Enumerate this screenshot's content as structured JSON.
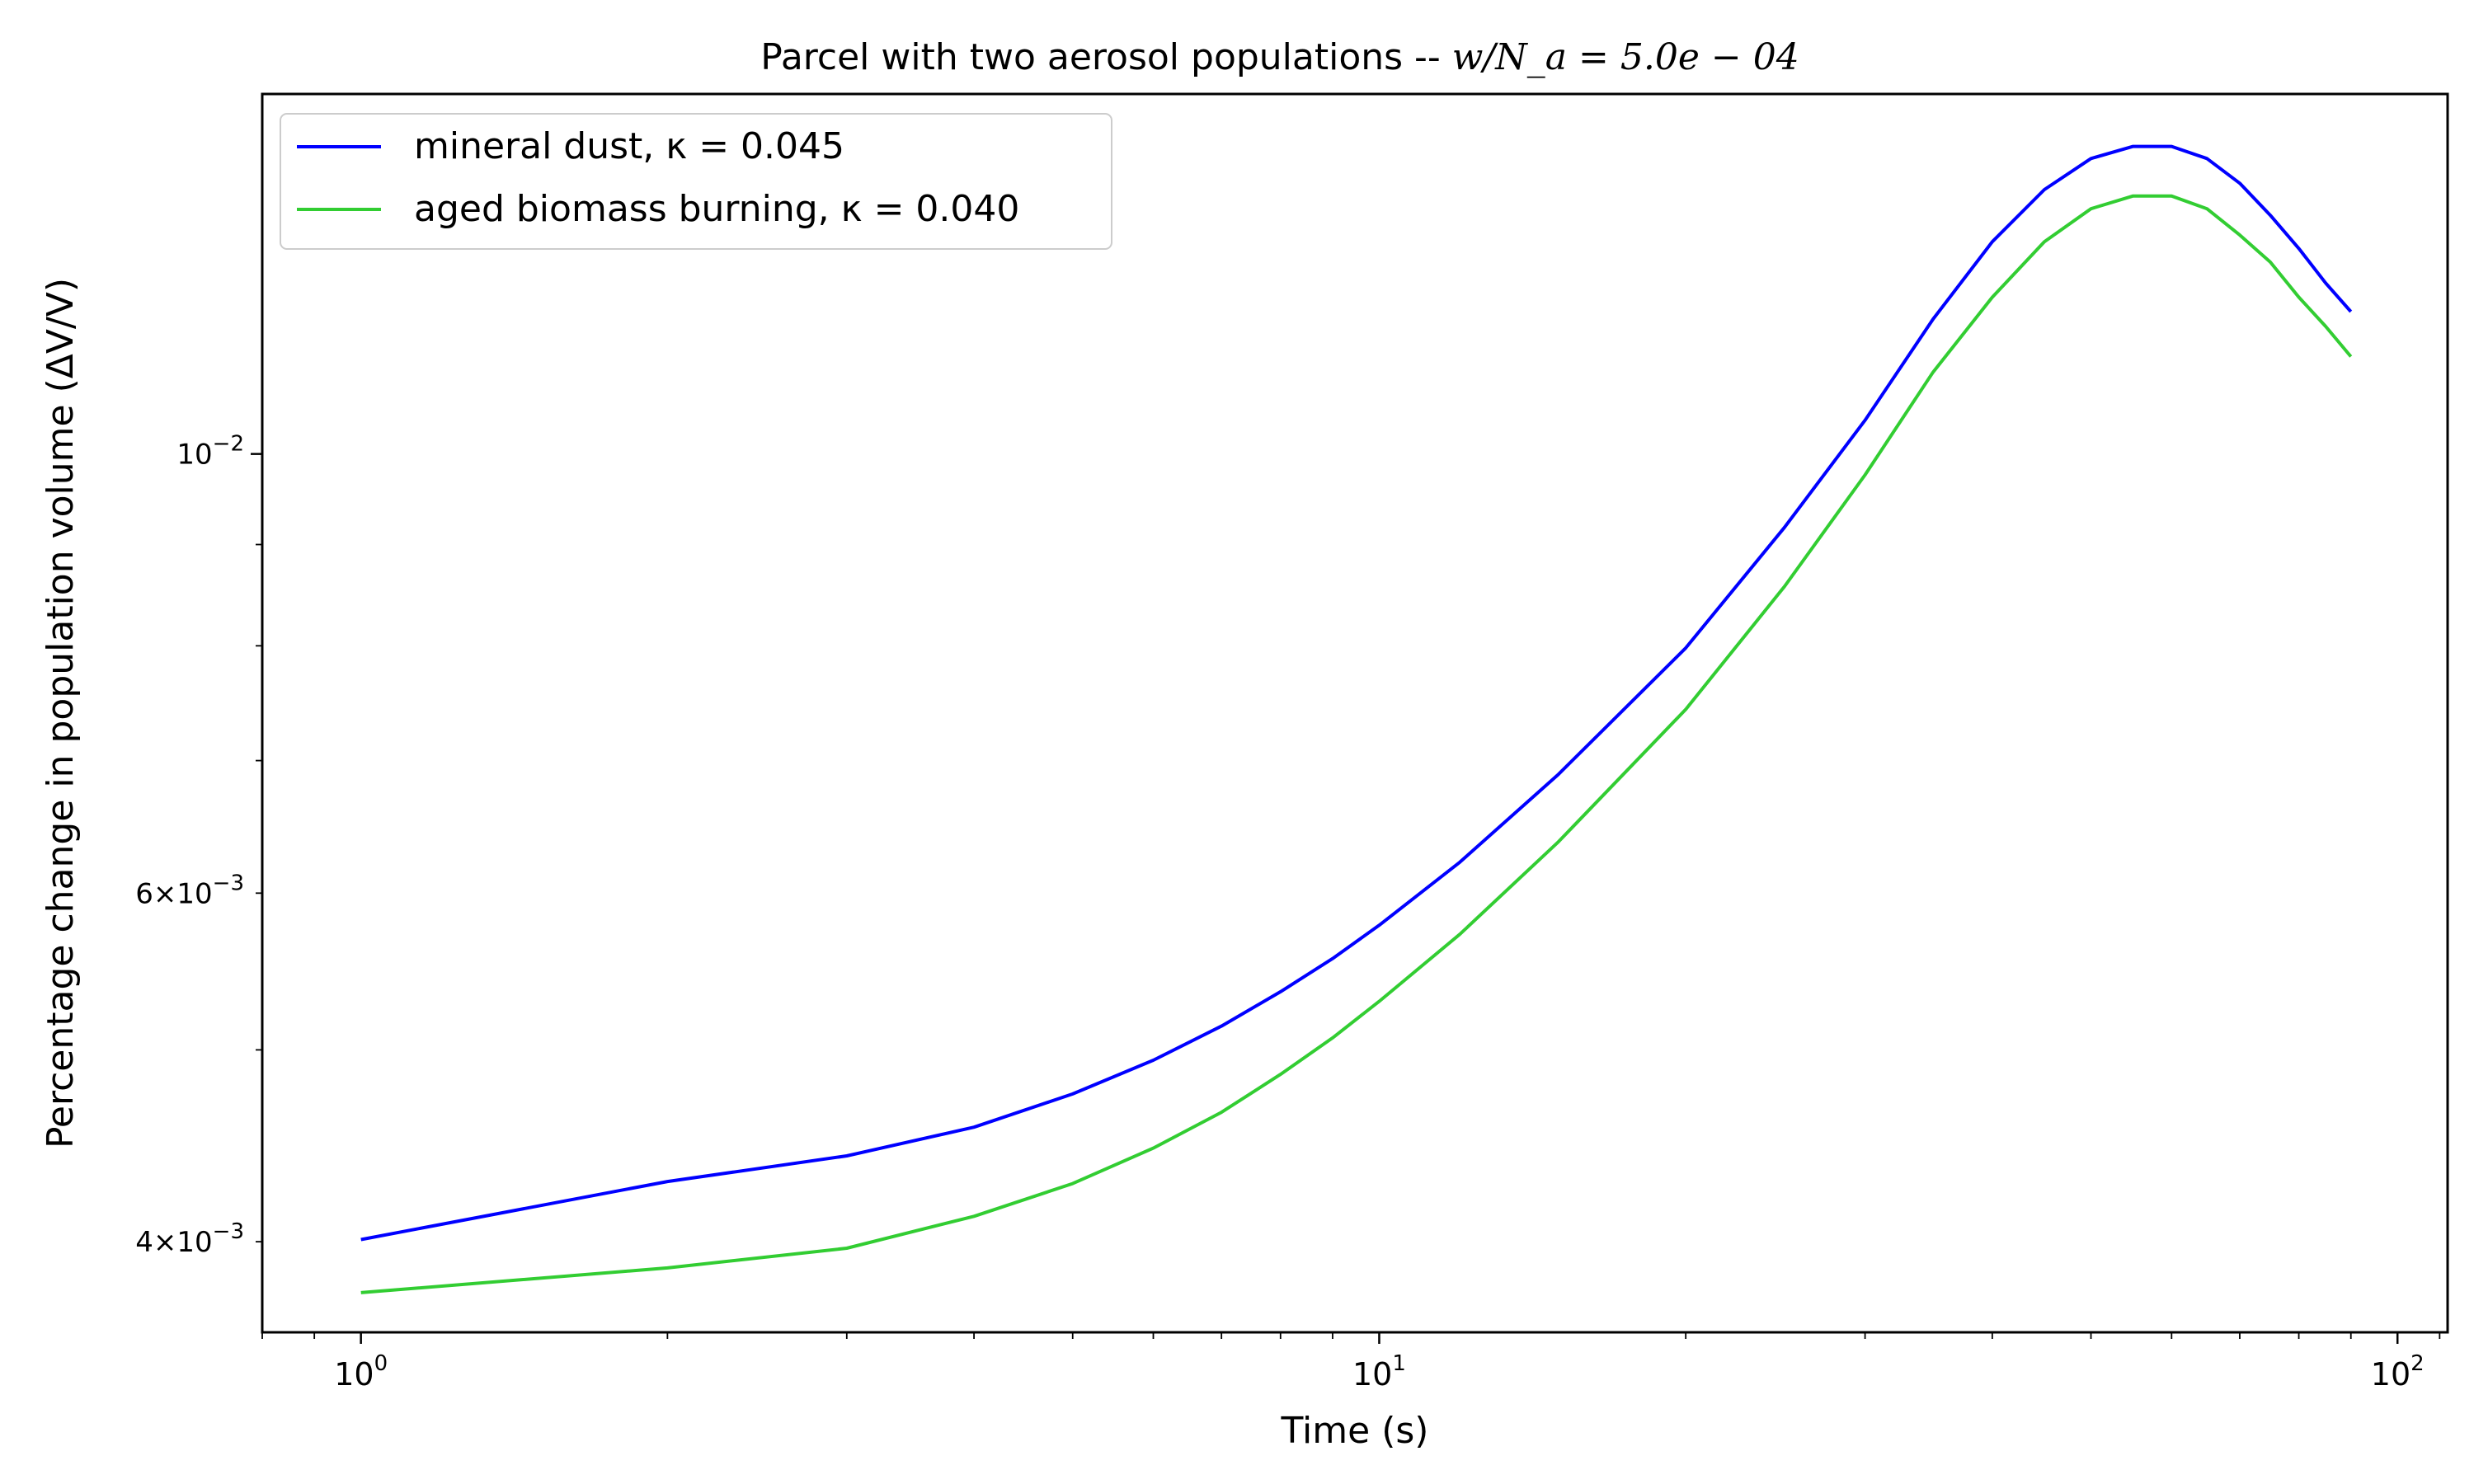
{
  "chart_data": {
    "type": "line",
    "title_main": "Parcel with two aerosol populations -- ",
    "title_math": "w/N_a = 5.0e − 04",
    "xlabel": "Time (s)",
    "ylabel": "Percentage change in population volume (ΔV/V)",
    "xscale": "log",
    "yscale": "log",
    "xlim": [
      0.8,
      112
    ],
    "ylim": [
      0.0036,
      0.0152
    ],
    "x_ticks": [
      {
        "value": 1,
        "base": "10",
        "exp": "0"
      },
      {
        "value": 10,
        "base": "10",
        "exp": "1"
      },
      {
        "value": 100,
        "base": "10",
        "exp": "2"
      }
    ],
    "y_ticks": [
      {
        "value": 0.004,
        "prefix": "4×10",
        "exp": "−3"
      },
      {
        "value": 0.006,
        "prefix": "6×10",
        "exp": "−3"
      },
      {
        "value": 0.01,
        "prefix": "10",
        "exp": "−2"
      }
    ],
    "legend_position": "top-left",
    "series": [
      {
        "name": "mineral dust, κ = 0.045",
        "color": "#0000ff",
        "x": [
          1,
          2,
          3,
          4,
          5,
          6,
          7,
          8,
          9,
          10,
          12,
          15,
          20,
          25,
          30,
          35,
          40,
          45,
          50,
          55,
          60,
          65,
          70,
          75,
          80,
          85,
          90
        ],
        "y": [
          0.00401,
          0.00429,
          0.00442,
          0.00457,
          0.00475,
          0.00494,
          0.00514,
          0.00535,
          0.00556,
          0.00578,
          0.00622,
          0.00689,
          0.00798,
          0.00918,
          0.0104,
          0.0117,
          0.0128,
          0.0136,
          0.0141,
          0.0143,
          0.0143,
          0.0141,
          0.0137,
          0.0132,
          0.0127,
          0.0122,
          0.0118
        ]
      },
      {
        "name": "aged biomass burning, κ = 0.040",
        "color": "#32cd32",
        "x": [
          1,
          2,
          3,
          4,
          5,
          6,
          7,
          8,
          9,
          10,
          12,
          15,
          20,
          25,
          30,
          35,
          40,
          45,
          50,
          55,
          60,
          65,
          70,
          75,
          80,
          85,
          90
        ],
        "y": [
          0.00377,
          0.00388,
          0.00397,
          0.00412,
          0.00428,
          0.00446,
          0.00465,
          0.00486,
          0.00507,
          0.00529,
          0.00572,
          0.00637,
          0.00743,
          0.00857,
          0.00976,
          0.011,
          0.012,
          0.0128,
          0.0133,
          0.0135,
          0.0135,
          0.0133,
          0.0129,
          0.0125,
          0.012,
          0.0116,
          0.0112
        ]
      }
    ]
  }
}
